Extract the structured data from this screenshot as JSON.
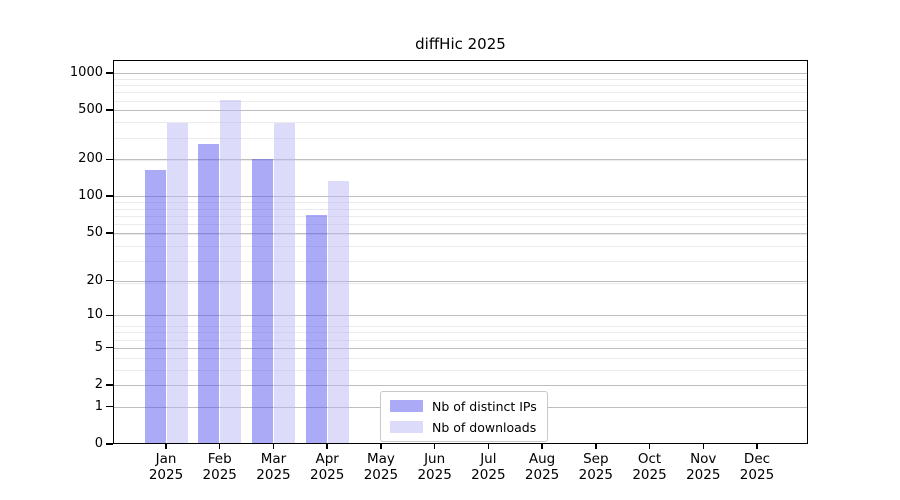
{
  "title": "diffHic 2025",
  "chart_data": {
    "type": "bar",
    "title": "diffHic 2025",
    "yscale": "log1p",
    "ylim": [
      0,
      1275
    ],
    "yticks": [
      0,
      1,
      2,
      5,
      10,
      20,
      50,
      100,
      200,
      500,
      1000
    ],
    "grid": "on",
    "legend_position": "bottom-center-inside",
    "categories": [
      "Jan",
      "Feb",
      "Mar",
      "Apr",
      "May",
      "Jun",
      "Jul",
      "Aug",
      "Sep",
      "Oct",
      "Nov",
      "Dec"
    ],
    "year_label": "2025",
    "series": [
      {
        "name": "Nb of distinct IPs",
        "color": "rgba(85,85,238,0.5)",
        "values": [
          165,
          266,
          200,
          70,
          null,
          null,
          null,
          null,
          null,
          null,
          null,
          null
        ]
      },
      {
        "name": "Nb of downloads",
        "color": "rgba(185,185,245,0.5)",
        "values": [
          394,
          605,
          393,
          133,
          null,
          null,
          null,
          null,
          null,
          null,
          null,
          null
        ]
      }
    ]
  },
  "colors": {
    "grid_major": "#bdbdbd",
    "grid_minor": "#ebebeb",
    "axis": "#000000",
    "background": "#ffffff"
  }
}
